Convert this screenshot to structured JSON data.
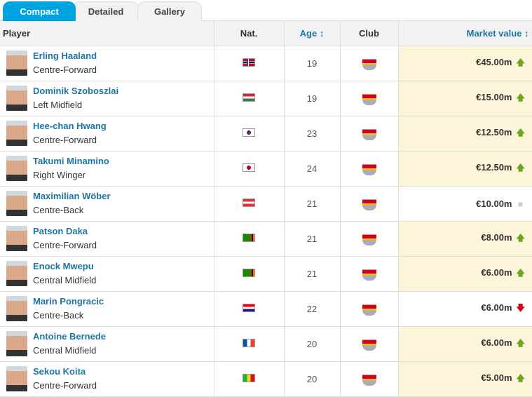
{
  "tabs": [
    "Compact",
    "Detailed",
    "Gallery"
  ],
  "headers": {
    "player": "Player",
    "nat": "Nat.",
    "age": "Age ↕",
    "club": "Club",
    "market_value": "Market value ↕"
  },
  "colors": {
    "accent": "#00a3e0",
    "link": "#1d75a3",
    "highlight": "#fdf5d9",
    "up": "#6ba51d",
    "down": "#d0021b",
    "neutral": "#cccccc"
  },
  "players": [
    {
      "name": "Erling Haaland",
      "position": "Centre-Forward",
      "nation": "Norway",
      "age": "19",
      "club": "Red Bull Salzburg",
      "value": "€45.00m",
      "trend": "up"
    },
    {
      "name": "Dominik Szoboszlai",
      "position": "Left Midfield",
      "nation": "Hungary",
      "age": "19",
      "club": "Red Bull Salzburg",
      "value": "€15.00m",
      "trend": "up"
    },
    {
      "name": "Hee-chan Hwang",
      "position": "Centre-Forward",
      "nation": "Korea, South",
      "age": "23",
      "club": "Red Bull Salzburg",
      "value": "€12.50m",
      "trend": "up"
    },
    {
      "name": "Takumi Minamino",
      "position": "Right Winger",
      "nation": "Japan",
      "age": "24",
      "club": "Red Bull Salzburg",
      "value": "€12.50m",
      "trend": "up"
    },
    {
      "name": "Maximilian Wöber",
      "position": "Centre-Back",
      "nation": "Austria",
      "age": "21",
      "club": "Red Bull Salzburg",
      "value": "€10.00m",
      "trend": "same"
    },
    {
      "name": "Patson Daka",
      "position": "Centre-Forward",
      "nation": "Zambia",
      "age": "21",
      "club": "Red Bull Salzburg",
      "value": "€8.00m",
      "trend": "up"
    },
    {
      "name": "Enock Mwepu",
      "position": "Central Midfield",
      "nation": "Zambia",
      "age": "21",
      "club": "Red Bull Salzburg",
      "value": "€6.00m",
      "trend": "up"
    },
    {
      "name": "Marin Pongracic",
      "position": "Centre-Back",
      "nation": "Croatia",
      "age": "22",
      "club": "Red Bull Salzburg",
      "value": "€6.00m",
      "trend": "down"
    },
    {
      "name": "Antoine Bernede",
      "position": "Central Midfield",
      "nation": "France",
      "age": "20",
      "club": "Red Bull Salzburg",
      "value": "€6.00m",
      "trend": "up"
    },
    {
      "name": "Sekou Koita",
      "position": "Centre-Forward",
      "nation": "Mali",
      "age": "20",
      "club": "Red Bull Salzburg",
      "value": "€5.00m",
      "trend": "up"
    }
  ]
}
